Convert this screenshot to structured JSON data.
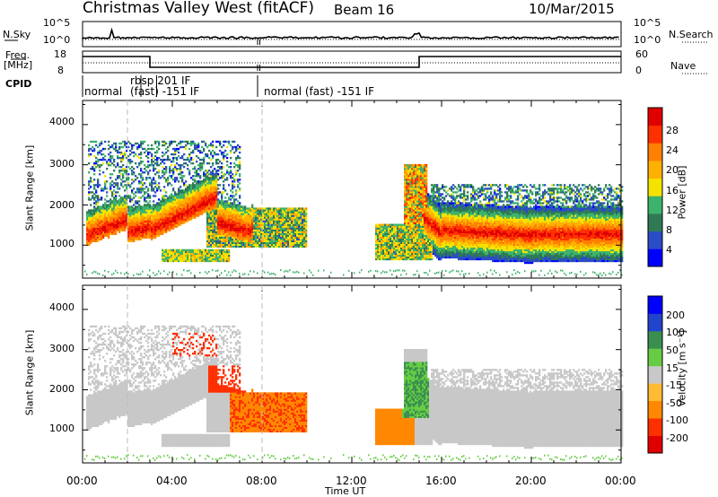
{
  "header": {
    "station": "Christmas Valley West (fitACF)",
    "beam": "Beam 16",
    "date": "10/Mar/2015"
  },
  "strips": {
    "nsky_label": "N.Sky",
    "nsearch_label": "N.Search",
    "nsky_ticks": [
      "10^5",
      "10^0"
    ],
    "freq_label_1": "Freq.",
    "freq_label_2": "[MHz]",
    "freq_ticks": [
      "18",
      "8"
    ],
    "nave_label": "Nave",
    "nave_ticks": [
      "60",
      "0"
    ],
    "cpid_label": "CPID",
    "cpid_segments": [
      {
        "label": "normal",
        "start": 0,
        "end": 2.6
      },
      {
        "label": "rbsp 201 IF",
        "start": 2.6,
        "end": 3.3
      },
      {
        "label": "(fast) -151 IF",
        "start": 3.3,
        "end": 7.8
      },
      {
        "label": "normal (fast) -151 IF",
        "start": 7.8,
        "end": 24
      }
    ]
  },
  "chart_data": [
    {
      "type": "heatmap",
      "name": "power",
      "ylabel": "Slant Range [km]",
      "xlabel": "Time UT",
      "xlim": [
        0,
        24
      ],
      "ylim": [
        180,
        4600
      ],
      "yticks": [
        "1000",
        "2000",
        "3000",
        "4000"
      ],
      "xticks": [
        "00:00",
        "04:00",
        "08:00",
        "12:00",
        "16:00",
        "20:00",
        "00:00"
      ],
      "colorbar_label": "Power [dB]",
      "colorbar_ticks": [
        "28",
        "24",
        "20",
        "16",
        "12",
        "8",
        "4"
      ],
      "colorbar_range": [
        0,
        30
      ],
      "colors": [
        "#0000ff",
        "#2a4cc6",
        "#2f7a55",
        "#3cb36c",
        "#f4e300",
        "#ffb000",
        "#ff7f00",
        "#ff3000",
        "#e00000"
      ]
    },
    {
      "type": "heatmap",
      "name": "velocity",
      "ylabel": "Slant Range [km]",
      "xlabel": "Time UT",
      "xlim": [
        0,
        24
      ],
      "ylim": [
        180,
        4600
      ],
      "yticks": [
        "1000",
        "2000",
        "3000",
        "4000"
      ],
      "xticks": [
        "00:00",
        "04:00",
        "08:00",
        "12:00",
        "16:00",
        "20:00",
        "00:00"
      ],
      "colorbar_label": "Velocity [m s⁻¹]",
      "colorbar_ticks": [
        "200",
        "100",
        "50",
        "15",
        "-15",
        "-50",
        "-100",
        "-200"
      ],
      "colorbar_range": [
        -250,
        250
      ],
      "colors": [
        "#e00000",
        "#ff3000",
        "#ff8800",
        "#ffbb33",
        "#c8c8c8",
        "#66cc44",
        "#3a8f50",
        "#2244cc",
        "#0000ff"
      ]
    }
  ]
}
